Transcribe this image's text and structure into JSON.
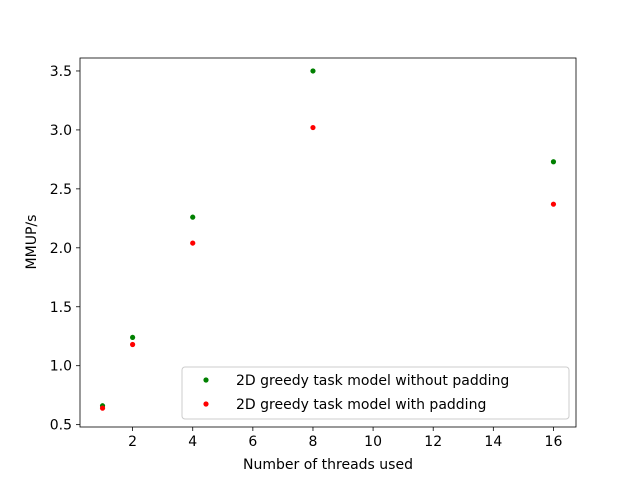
{
  "chart_data": {
    "type": "scatter",
    "title": "",
    "xlabel": "Number of threads used",
    "ylabel": "MMUP/s",
    "xlim": [
      0.25,
      16.75
    ],
    "ylim": [
      0.48,
      3.61
    ],
    "xticks": [
      2,
      4,
      6,
      8,
      10,
      12,
      14,
      16
    ],
    "yticks": [
      0.5,
      1.0,
      1.5,
      2.0,
      2.5,
      3.0,
      3.5
    ],
    "xtick_labels": [
      "2",
      "4",
      "6",
      "8",
      "10",
      "12",
      "14",
      "16"
    ],
    "ytick_labels": [
      "0.5",
      "1.0",
      "1.5",
      "2.0",
      "2.5",
      "3.0",
      "3.5"
    ],
    "grid": false,
    "legend_position": "lower-right",
    "series": [
      {
        "name": "2D greedy task model without padding",
        "color": "#008000",
        "x": [
          1,
          2,
          4,
          8,
          16
        ],
        "y": [
          0.66,
          1.24,
          2.26,
          3.5,
          2.73
        ]
      },
      {
        "name": "2D greedy task model with padding",
        "color": "#ff0000",
        "x": [
          1,
          2,
          4,
          8,
          16
        ],
        "y": [
          0.64,
          1.18,
          2.04,
          3.02,
          2.37
        ]
      }
    ]
  }
}
